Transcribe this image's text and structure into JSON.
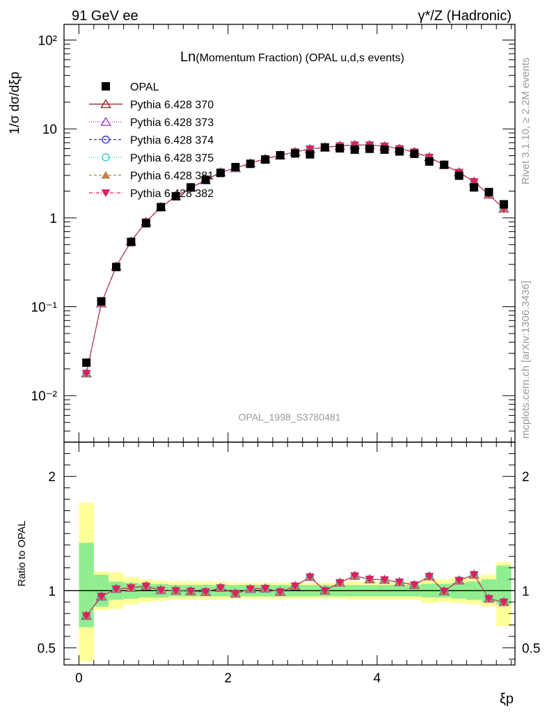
{
  "header": {
    "left": "91 GeV ee",
    "right": "γ*/Z (Hadronic)"
  },
  "plot_title": {
    "prefix": "Ln",
    "rest": "(Momentum Fraction) (OPAL u,d,s events)"
  },
  "analysis_id": "OPAL_1998_S3780481",
  "side_text": {
    "rivet": "Rivet 3.1.10, ≥ 2.2M events",
    "mcplots": "mcplots.cern.ch [arXiv:1306.3436]"
  },
  "axes": {
    "main_ylabel": "1/σ dσ/dξp",
    "ratio_ylabel": "Ratio to OPAL",
    "xlabel": "ξp",
    "x_ticks": [
      "0",
      "2",
      "4"
    ],
    "main_y_ticks": [
      "10⁻²",
      "10⁻¹",
      "1",
      "10",
      "10²"
    ],
    "ratio_y_ticks": [
      "0.5",
      "1",
      "2"
    ]
  },
  "colors": {
    "band_green": "#90ee90",
    "band_yellow": "#ffff99"
  },
  "chart_data": {
    "type": "line",
    "x_range": [
      -0.2,
      5.85
    ],
    "main_y_log_range": [
      0.003,
      150
    ],
    "ratio_y_range": [
      0.35,
      2.3
    ],
    "x": [
      0.1,
      0.3,
      0.5,
      0.7,
      0.9,
      1.1,
      1.3,
      1.5,
      1.7,
      1.9,
      2.1,
      2.3,
      2.5,
      2.7,
      2.9,
      3.1,
      3.3,
      3.5,
      3.7,
      3.9,
      4.1,
      4.3,
      4.5,
      4.7,
      4.9,
      5.1,
      5.3,
      5.5,
      5.7
    ],
    "opal": [
      0.0235,
      0.115,
      0.28,
      0.535,
      0.87,
      1.32,
      1.75,
      2.2,
      2.68,
      3.2,
      3.72,
      4.05,
      4.52,
      5.05,
      5.3,
      5.18,
      6.2,
      6.05,
      5.85,
      5.98,
      5.85,
      5.58,
      5.25,
      4.3,
      3.95,
      2.98,
      2.2,
      1.95,
      1.42
    ],
    "mc": [
      0.0178,
      0.109,
      0.284,
      0.545,
      0.9,
      1.32,
      1.75,
      2.18,
      2.65,
      3.26,
      3.62,
      4.12,
      4.62,
      5.05,
      5.5,
      5.95,
      6.2,
      6.45,
      6.6,
      6.6,
      6.4,
      6.0,
      5.5,
      4.8,
      3.95,
      3.25,
      2.55,
      1.82,
      1.27
    ],
    "ratio": [
      0.78,
      0.95,
      1.015,
      1.025,
      1.04,
      1.005,
      1.0,
      0.995,
      0.99,
      1.025,
      0.975,
      1.015,
      1.02,
      0.99,
      1.04,
      1.12,
      1.0,
      1.07,
      1.13,
      1.1,
      1.095,
      1.075,
      1.05,
      1.125,
      0.995,
      1.09,
      1.14,
      0.93,
      0.9
    ],
    "stat_band": [
      [
        0.68,
        1.42
      ],
      [
        0.86,
        1.14
      ],
      [
        0.92,
        1.08
      ],
      [
        0.93,
        1.07
      ],
      [
        0.94,
        1.06
      ],
      [
        0.94,
        1.06
      ],
      [
        0.95,
        1.05
      ],
      [
        0.95,
        1.05
      ],
      [
        0.95,
        1.05
      ],
      [
        0.95,
        1.05
      ],
      [
        0.95,
        1.05
      ],
      [
        0.95,
        1.05
      ],
      [
        0.95,
        1.05
      ],
      [
        0.95,
        1.05
      ],
      [
        0.95,
        1.05
      ],
      [
        0.95,
        1.05
      ],
      [
        0.95,
        1.05
      ],
      [
        0.95,
        1.05
      ],
      [
        0.95,
        1.05
      ],
      [
        0.95,
        1.05
      ],
      [
        0.95,
        1.05
      ],
      [
        0.95,
        1.05
      ],
      [
        0.95,
        1.05
      ],
      [
        0.94,
        1.06
      ],
      [
        0.94,
        1.06
      ],
      [
        0.93,
        1.07
      ],
      [
        0.92,
        1.08
      ],
      [
        0.9,
        1.1
      ],
      [
        0.88,
        1.22
      ]
    ],
    "total_band": [
      [
        0.38,
        1.77
      ],
      [
        0.83,
        1.17
      ],
      [
        0.84,
        1.16
      ],
      [
        0.88,
        1.12
      ],
      [
        0.9,
        1.1
      ],
      [
        0.91,
        1.09
      ],
      [
        0.92,
        1.08
      ],
      [
        0.92,
        1.08
      ],
      [
        0.92,
        1.08
      ],
      [
        0.92,
        1.08
      ],
      [
        0.93,
        1.07
      ],
      [
        0.93,
        1.07
      ],
      [
        0.93,
        1.07
      ],
      [
        0.93,
        1.07
      ],
      [
        0.93,
        1.07
      ],
      [
        0.93,
        1.07
      ],
      [
        0.93,
        1.07
      ],
      [
        0.93,
        1.07
      ],
      [
        0.92,
        1.08
      ],
      [
        0.92,
        1.08
      ],
      [
        0.92,
        1.08
      ],
      [
        0.92,
        1.08
      ],
      [
        0.92,
        1.08
      ],
      [
        0.89,
        1.11
      ],
      [
        0.9,
        1.1
      ],
      [
        0.89,
        1.11
      ],
      [
        0.88,
        1.12
      ],
      [
        0.86,
        1.14
      ],
      [
        0.69,
        1.25
      ]
    ],
    "legend": [
      {
        "name": "OPAL",
        "color": "#000000",
        "marker": "square",
        "dash": ""
      },
      {
        "name": "Pythia 6.428 370",
        "color": "#8b1a1a",
        "marker": "tri-up-open",
        "dash": ""
      },
      {
        "name": "Pythia 6.428 373",
        "color": "#9932cc",
        "marker": "tri-up-open",
        "dash": "1,2"
      },
      {
        "name": "Pythia 6.428 374",
        "color": "#1e1ed8",
        "marker": "circle-open",
        "dash": "4,3"
      },
      {
        "name": "Pythia 6.428 375",
        "color": "#20c8c8",
        "marker": "circle-open",
        "dash": "1,2"
      },
      {
        "name": "Pythia 6.428 381",
        "color": "#b8864b",
        "marker": "tri-up-filled",
        "dash": "4,3"
      },
      {
        "name": "Pythia 6.428 382",
        "color": "#e0205a",
        "marker": "tri-down-filled",
        "dash": "5,2,1,2"
      }
    ]
  }
}
